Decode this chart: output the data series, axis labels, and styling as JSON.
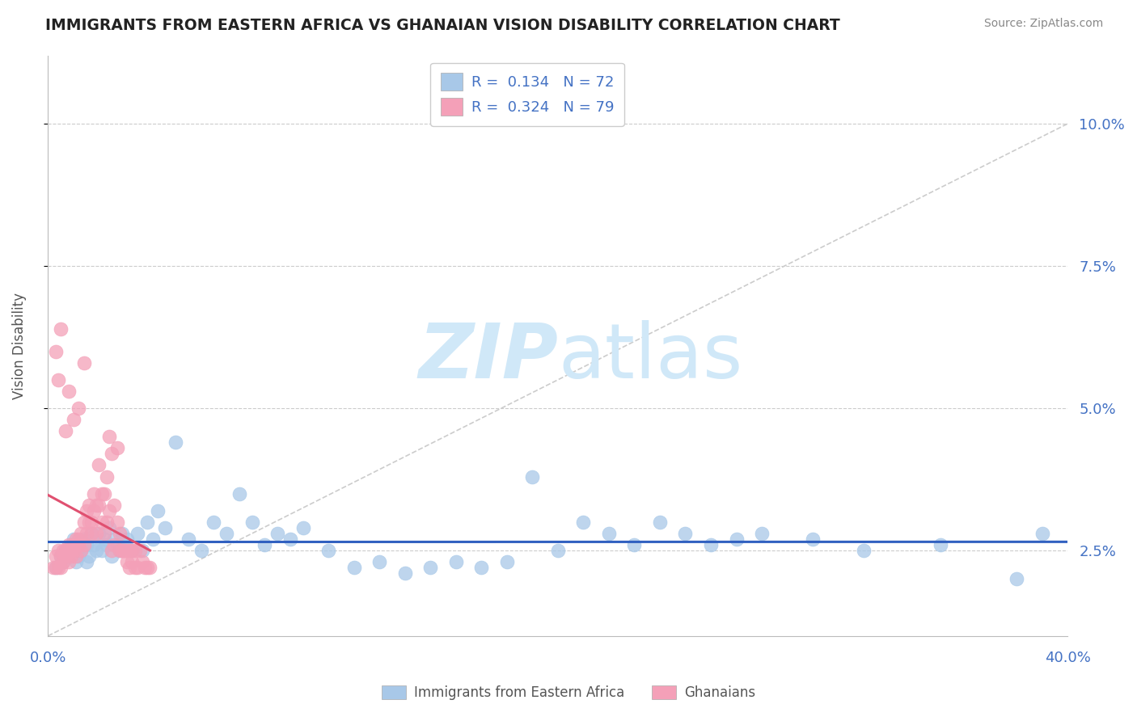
{
  "title": "IMMIGRANTS FROM EASTERN AFRICA VS GHANAIAN VISION DISABILITY CORRELATION CHART",
  "source": "Source: ZipAtlas.com",
  "ylabel": "Vision Disability",
  "xlim": [
    0.0,
    0.4
  ],
  "ylim": [
    0.01,
    0.112
  ],
  "yticks": [
    0.025,
    0.05,
    0.075,
    0.1
  ],
  "ytick_labels": [
    "2.5%",
    "5.0%",
    "7.5%",
    "10.0%"
  ],
  "xticks": [
    0.0,
    0.05,
    0.1,
    0.15,
    0.2,
    0.25,
    0.3,
    0.35,
    0.4
  ],
  "xtick_labels_show": [
    "0.0%",
    "40.0%"
  ],
  "blue_R": 0.134,
  "blue_N": 72,
  "pink_R": 0.324,
  "pink_N": 79,
  "blue_color": "#a8c8e8",
  "pink_color": "#f4a0b8",
  "blue_line_color": "#3060c0",
  "pink_line_color": "#e05070",
  "axis_tick_color": "#4472C4",
  "grid_color": "#cccccc",
  "spine_color": "#bbbbbb",
  "watermark_color": "#d0e8f8",
  "blue_scatter_x": [
    0.003,
    0.005,
    0.006,
    0.007,
    0.008,
    0.009,
    0.01,
    0.01,
    0.011,
    0.012,
    0.012,
    0.013,
    0.014,
    0.015,
    0.015,
    0.016,
    0.017,
    0.018,
    0.019,
    0.02,
    0.021,
    0.022,
    0.023,
    0.024,
    0.025,
    0.026,
    0.027,
    0.028,
    0.029,
    0.03,
    0.031,
    0.033,
    0.035,
    0.037,
    0.039,
    0.041,
    0.043,
    0.046,
    0.05,
    0.055,
    0.06,
    0.065,
    0.07,
    0.075,
    0.08,
    0.085,
    0.09,
    0.095,
    0.1,
    0.11,
    0.12,
    0.13,
    0.14,
    0.15,
    0.16,
    0.17,
    0.18,
    0.19,
    0.2,
    0.21,
    0.22,
    0.23,
    0.24,
    0.25,
    0.26,
    0.27,
    0.28,
    0.3,
    0.32,
    0.35,
    0.38,
    0.39
  ],
  "blue_scatter_y": [
    0.022,
    0.024,
    0.023,
    0.025,
    0.024,
    0.026,
    0.025,
    0.027,
    0.023,
    0.024,
    0.026,
    0.025,
    0.027,
    0.023,
    0.026,
    0.024,
    0.028,
    0.026,
    0.025,
    0.028,
    0.025,
    0.027,
    0.026,
    0.029,
    0.024,
    0.027,
    0.026,
    0.025,
    0.028,
    0.026,
    0.027,
    0.025,
    0.028,
    0.025,
    0.03,
    0.027,
    0.032,
    0.029,
    0.044,
    0.027,
    0.025,
    0.03,
    0.028,
    0.035,
    0.03,
    0.026,
    0.028,
    0.027,
    0.029,
    0.025,
    0.022,
    0.023,
    0.021,
    0.022,
    0.023,
    0.022,
    0.023,
    0.038,
    0.025,
    0.03,
    0.028,
    0.026,
    0.03,
    0.028,
    0.026,
    0.027,
    0.028,
    0.027,
    0.025,
    0.026,
    0.02,
    0.028
  ],
  "pink_scatter_x": [
    0.002,
    0.003,
    0.003,
    0.004,
    0.004,
    0.005,
    0.005,
    0.006,
    0.006,
    0.007,
    0.007,
    0.008,
    0.008,
    0.009,
    0.009,
    0.01,
    0.01,
    0.011,
    0.011,
    0.012,
    0.012,
    0.013,
    0.013,
    0.014,
    0.014,
    0.015,
    0.015,
    0.016,
    0.016,
    0.017,
    0.017,
    0.018,
    0.018,
    0.019,
    0.019,
    0.02,
    0.02,
    0.021,
    0.021,
    0.022,
    0.022,
    0.023,
    0.023,
    0.024,
    0.024,
    0.025,
    0.025,
    0.026,
    0.026,
    0.027,
    0.027,
    0.028,
    0.028,
    0.029,
    0.029,
    0.03,
    0.03,
    0.031,
    0.031,
    0.032,
    0.032,
    0.033,
    0.033,
    0.034,
    0.034,
    0.035,
    0.036,
    0.037,
    0.038,
    0.039,
    0.04,
    0.003,
    0.004,
    0.005,
    0.007,
    0.008,
    0.01,
    0.012,
    0.014
  ],
  "pink_scatter_y": [
    0.022,
    0.022,
    0.024,
    0.022,
    0.025,
    0.024,
    0.022,
    0.025,
    0.023,
    0.024,
    0.025,
    0.023,
    0.026,
    0.025,
    0.024,
    0.026,
    0.025,
    0.027,
    0.024,
    0.027,
    0.026,
    0.028,
    0.025,
    0.03,
    0.026,
    0.028,
    0.032,
    0.03,
    0.033,
    0.03,
    0.028,
    0.032,
    0.035,
    0.033,
    0.028,
    0.033,
    0.04,
    0.035,
    0.03,
    0.028,
    0.035,
    0.038,
    0.03,
    0.045,
    0.032,
    0.025,
    0.042,
    0.033,
    0.026,
    0.043,
    0.03,
    0.025,
    0.028,
    0.025,
    0.025,
    0.025,
    0.025,
    0.025,
    0.023,
    0.025,
    0.022,
    0.025,
    0.023,
    0.025,
    0.022,
    0.022,
    0.025,
    0.023,
    0.022,
    0.022,
    0.022,
    0.06,
    0.055,
    0.064,
    0.046,
    0.053,
    0.048,
    0.05,
    0.058
  ]
}
